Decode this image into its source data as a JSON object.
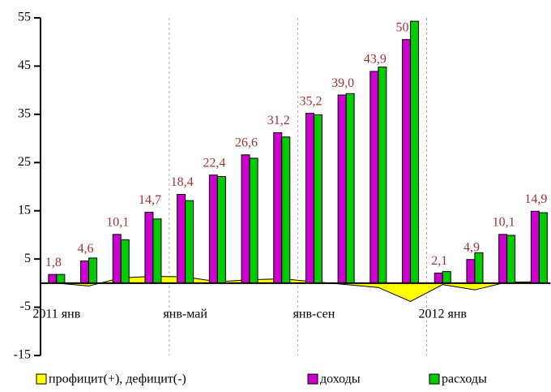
{
  "chart_data": {
    "type": "bar",
    "categories": [
      "2011 янв",
      null,
      null,
      null,
      "янв-май",
      null,
      null,
      null,
      "янв-сен",
      null,
      null,
      null,
      "2012 янв",
      null,
      null,
      null
    ],
    "series": [
      {
        "name": "профицит(+), дефицит(-)",
        "type": "area",
        "color": "#ffff00",
        "values": [
          0,
          -0.6,
          1.1,
          1.4,
          1.3,
          0.3,
          0.7,
          0.9,
          0.3,
          -0.3,
          -0.9,
          -3.8,
          -0.3,
          -1.4,
          0.2,
          0.3
        ]
      },
      {
        "name": "доходы",
        "color": "#cc00cc",
        "values": [
          1.8,
          4.6,
          10.1,
          14.7,
          18.4,
          22.4,
          26.6,
          31.2,
          35.2,
          39.0,
          43.9,
          50.5,
          2.1,
          4.9,
          10.1,
          14.9
        ],
        "value_labels": [
          "1,8",
          "4,6",
          "10,1",
          "14,7",
          "18,4",
          "22,4",
          "26,6",
          "31,2",
          "35,2",
          "39,0",
          "43,9",
          "50,5",
          "2,1",
          "4,9",
          "10,1",
          "14,9"
        ]
      },
      {
        "name": "расходы",
        "color": "#00cc00",
        "values": [
          1.8,
          5.2,
          9.0,
          13.3,
          17.1,
          22.1,
          25.9,
          30.3,
          34.9,
          39.3,
          44.8,
          54.3,
          2.4,
          6.3,
          9.9,
          14.6
        ]
      }
    ],
    "ylim": [
      -15,
      55
    ],
    "yticks": [
      -15,
      -5,
      5,
      15,
      25,
      35,
      45,
      55
    ],
    "grid": false
  }
}
